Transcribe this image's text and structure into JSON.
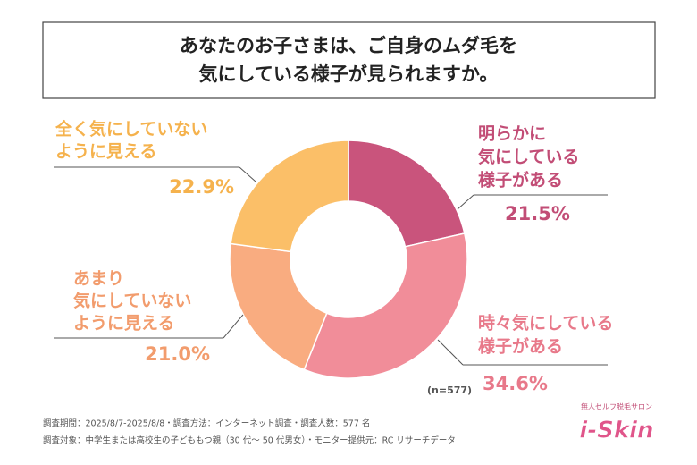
{
  "chart_data": {
    "type": "donut",
    "title_lines": [
      "あなたのお子さまは、ご自身のムダ毛を",
      "気にしている様子が見られますか。"
    ],
    "categories": [
      [
        "明らかに",
        "気にしている",
        "様子がある"
      ],
      [
        "時々気にしている",
        "様子がある"
      ],
      [
        "あまり",
        "気にしていない",
        "ように見える"
      ],
      [
        "全く気にしていない",
        "ように見える"
      ]
    ],
    "values": [
      21.5,
      34.6,
      21.0,
      22.9
    ],
    "value_labels": [
      "21.5%",
      "34.6%",
      "21.0%",
      "22.9%"
    ],
    "colors": [
      "#c9547c",
      "#f18d99",
      "#f9ac80",
      "#fbbf68"
    ],
    "label_colors": [
      "#c24d76",
      "#e8798a",
      "#f29c6d",
      "#f5b24d"
    ],
    "sample_note": "(n=577)",
    "footnotes": [
      "調査期間：2025/8/7-2025/8/8・調査方法：インターネット調査・調査人数：577 名",
      "調査対象：中学生または高校生の子どももつ親（30 代〜 50 代男女）・モニター提供元：RC リサーチデータ"
    ],
    "logo_sub": "無人セルフ脱毛サロン",
    "logo": "i-Skin"
  }
}
